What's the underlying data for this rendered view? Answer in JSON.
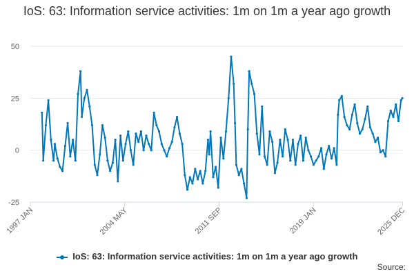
{
  "chart_data": {
    "type": "line",
    "title": "IoS: 63: Information service activities: 1m on 1m a year ago growth",
    "xlabel": "",
    "ylabel": "",
    "ylim": [
      -25,
      50
    ],
    "yticks": [
      -25,
      0,
      25,
      50
    ],
    "xlim": [
      1997.0,
      2025.95
    ],
    "xticks": [
      {
        "label": "1997 JAN",
        "value": 1997.0
      },
      {
        "label": "2004 MAY",
        "value": 2004.33
      },
      {
        "label": "2011 SEP",
        "value": 2011.67
      },
      {
        "label": "2019 JAN",
        "value": 2019.0
      },
      {
        "label": "2025 DEC",
        "value": 2025.92
      }
    ],
    "series": [
      {
        "name": "IoS: 63: Information service activities: 1m on 1m a year ago growth",
        "color": "#0077bb",
        "points": [
          [
            1997.9,
            18
          ],
          [
            1998.0,
            -5
          ],
          [
            1998.2,
            12
          ],
          [
            1998.4,
            24
          ],
          [
            1998.6,
            5
          ],
          [
            1998.8,
            -5
          ],
          [
            1998.9,
            3
          ],
          [
            1999.1,
            -4
          ],
          [
            1999.3,
            -8
          ],
          [
            1999.5,
            -10
          ],
          [
            1999.7,
            2
          ],
          [
            1999.9,
            13
          ],
          [
            2000.1,
            -3
          ],
          [
            2000.3,
            5
          ],
          [
            2000.5,
            -5
          ],
          [
            2000.7,
            27
          ],
          [
            2000.9,
            38
          ],
          [
            2001.0,
            16
          ],
          [
            2001.2,
            25
          ],
          [
            2001.4,
            29
          ],
          [
            2001.6,
            21
          ],
          [
            2001.8,
            12
          ],
          [
            2002.0,
            -7
          ],
          [
            2002.2,
            -12
          ],
          [
            2002.4,
            -2
          ],
          [
            2002.6,
            12
          ],
          [
            2002.8,
            6
          ],
          [
            2003.0,
            -5
          ],
          [
            2003.2,
            -10
          ],
          [
            2003.4,
            -6
          ],
          [
            2003.6,
            5
          ],
          [
            2003.8,
            -15
          ],
          [
            2004.0,
            7
          ],
          [
            2004.2,
            -5
          ],
          [
            2004.4,
            3
          ],
          [
            2004.6,
            9
          ],
          [
            2004.8,
            0
          ],
          [
            2005.0,
            -7
          ],
          [
            2005.2,
            8
          ],
          [
            2005.4,
            4
          ],
          [
            2005.6,
            9
          ],
          [
            2005.8,
            0
          ],
          [
            2006.0,
            7
          ],
          [
            2006.2,
            3
          ],
          [
            2006.4,
            0
          ],
          [
            2006.6,
            18
          ],
          [
            2006.8,
            12
          ],
          [
            2007.0,
            9
          ],
          [
            2007.2,
            3
          ],
          [
            2007.4,
            0
          ],
          [
            2007.6,
            -3
          ],
          [
            2007.8,
            1
          ],
          [
            2008.0,
            4
          ],
          [
            2008.2,
            11
          ],
          [
            2008.4,
            16
          ],
          [
            2008.6,
            8
          ],
          [
            2008.8,
            3
          ],
          [
            2009.0,
            -12
          ],
          [
            2009.2,
            -19
          ],
          [
            2009.4,
            -13
          ],
          [
            2009.6,
            -16
          ],
          [
            2009.8,
            -9
          ],
          [
            2010.0,
            -14
          ],
          [
            2010.2,
            -10
          ],
          [
            2010.4,
            -16
          ],
          [
            2010.6,
            -10
          ],
          [
            2010.8,
            5
          ],
          [
            2010.9,
            -2
          ],
          [
            2011.0,
            9
          ],
          [
            2011.2,
            -13
          ],
          [
            2011.4,
            -8
          ],
          [
            2011.6,
            -18
          ],
          [
            2011.8,
            6
          ],
          [
            2012.0,
            -4
          ],
          [
            2012.2,
            9
          ],
          [
            2012.4,
            25
          ],
          [
            2012.6,
            45
          ],
          [
            2012.8,
            32
          ],
          [
            2012.9,
            13
          ],
          [
            2013.0,
            -7
          ],
          [
            2013.2,
            -12
          ],
          [
            2013.4,
            -9
          ],
          [
            2013.6,
            -16
          ],
          [
            2013.8,
            -23
          ],
          [
            2013.9,
            10
          ],
          [
            2014.0,
            38
          ],
          [
            2014.2,
            32
          ],
          [
            2014.4,
            27
          ],
          [
            2014.6,
            8
          ],
          [
            2014.8,
            -2
          ],
          [
            2015.0,
            21
          ],
          [
            2015.2,
            -3
          ],
          [
            2015.4,
            -7
          ],
          [
            2015.6,
            9
          ],
          [
            2015.8,
            4
          ],
          [
            2016.0,
            -11
          ],
          [
            2016.2,
            -6
          ],
          [
            2016.4,
            5
          ],
          [
            2016.6,
            -3
          ],
          [
            2016.8,
            10
          ],
          [
            2017.0,
            5
          ],
          [
            2017.2,
            -5
          ],
          [
            2017.4,
            5
          ],
          [
            2017.6,
            -7
          ],
          [
            2017.8,
            3
          ],
          [
            2018.0,
            7
          ],
          [
            2018.2,
            -5
          ],
          [
            2018.4,
            6
          ],
          [
            2018.6,
            0
          ],
          [
            2018.8,
            -3
          ],
          [
            2019.0,
            -7
          ],
          [
            2019.2,
            -5
          ],
          [
            2019.4,
            -3
          ],
          [
            2019.6,
            1
          ],
          [
            2019.8,
            -9
          ],
          [
            2020.0,
            -2
          ],
          [
            2020.2,
            2
          ],
          [
            2020.4,
            -4
          ],
          [
            2020.6,
            1
          ],
          [
            2020.8,
            -7
          ],
          [
            2020.9,
            17
          ],
          [
            2021.0,
            24
          ],
          [
            2021.2,
            26
          ],
          [
            2021.4,
            16
          ],
          [
            2021.6,
            12
          ],
          [
            2021.8,
            10
          ],
          [
            2022.0,
            17
          ],
          [
            2022.2,
            22
          ],
          [
            2022.4,
            13
          ],
          [
            2022.6,
            8
          ],
          [
            2022.8,
            10
          ],
          [
            2023.0,
            15
          ],
          [
            2023.2,
            21
          ],
          [
            2023.4,
            11
          ],
          [
            2023.6,
            8
          ],
          [
            2023.8,
            4
          ],
          [
            2024.0,
            6
          ],
          [
            2024.2,
            -1
          ],
          [
            2024.4,
            0
          ],
          [
            2024.6,
            -3
          ],
          [
            2024.8,
            14
          ],
          [
            2025.0,
            19
          ],
          [
            2025.2,
            16
          ],
          [
            2025.4,
            22
          ],
          [
            2025.6,
            14
          ],
          [
            2025.8,
            24
          ],
          [
            2025.9,
            25
          ]
        ]
      }
    ],
    "legend_position": "bottom",
    "grid": true
  },
  "source_label": "Source:"
}
